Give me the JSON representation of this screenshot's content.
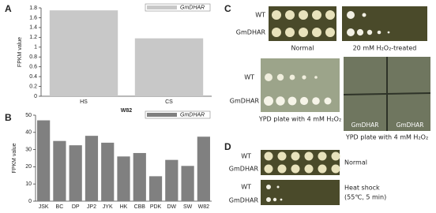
{
  "panel_labels": [
    "A",
    "B",
    "C",
    "D"
  ],
  "chart_data": [
    {
      "type": "bar",
      "ylabel": "FPKM value",
      "xlabel": "W82",
      "categories": [
        "HS",
        "CS"
      ],
      "series": [
        {
          "name": "GmDHAR",
          "color": "#c8c8c8",
          "values": [
            1.75,
            1.18
          ]
        }
      ],
      "ylim": [
        0,
        1.8
      ],
      "yticks": [
        0,
        0.2,
        0.4,
        0.6,
        0.8,
        1,
        1.2,
        1.4,
        1.6,
        1.8
      ],
      "legend": "upper right"
    },
    {
      "type": "bar",
      "ylabel": "FPKM value",
      "categories": [
        "JSK",
        "BC",
        "DP",
        "JP2",
        "JYK",
        "HK",
        "CBB",
        "PDK",
        "DW",
        "SW",
        "W82"
      ],
      "series": [
        {
          "name": "GmDHAR",
          "color": "#808080",
          "values": [
            47,
            35,
            32.5,
            38,
            34,
            26,
            28,
            14.5,
            24,
            20.5,
            37.5
          ]
        }
      ],
      "ylim": [
        0,
        50
      ],
      "yticks": [
        0,
        10,
        20,
        30,
        40,
        50
      ],
      "legend": "upper right"
    }
  ],
  "panel_c": {
    "plate_rows": [
      "WT",
      "GmDHAR"
    ],
    "normal": "Normal",
    "treated": "20 mM H₂O₂-treated",
    "ypd_rows": [
      "WT",
      "GmDHAR"
    ],
    "ypd_left": "YPD plate with 4 mM H₂O₂",
    "photo_labels": [
      "GmDHAR",
      "GmDHAR"
    ],
    "ypd_right": "YPD plate with 4 mM H₂O₂"
  },
  "panel_d": {
    "normal_rows": [
      "WT",
      "GmDHAR"
    ],
    "normal": "Normal",
    "heat_rows": [
      "WT",
      "GmDHAR"
    ],
    "heat": [
      "Heat shock",
      "(55℃, 5 min)"
    ]
  }
}
